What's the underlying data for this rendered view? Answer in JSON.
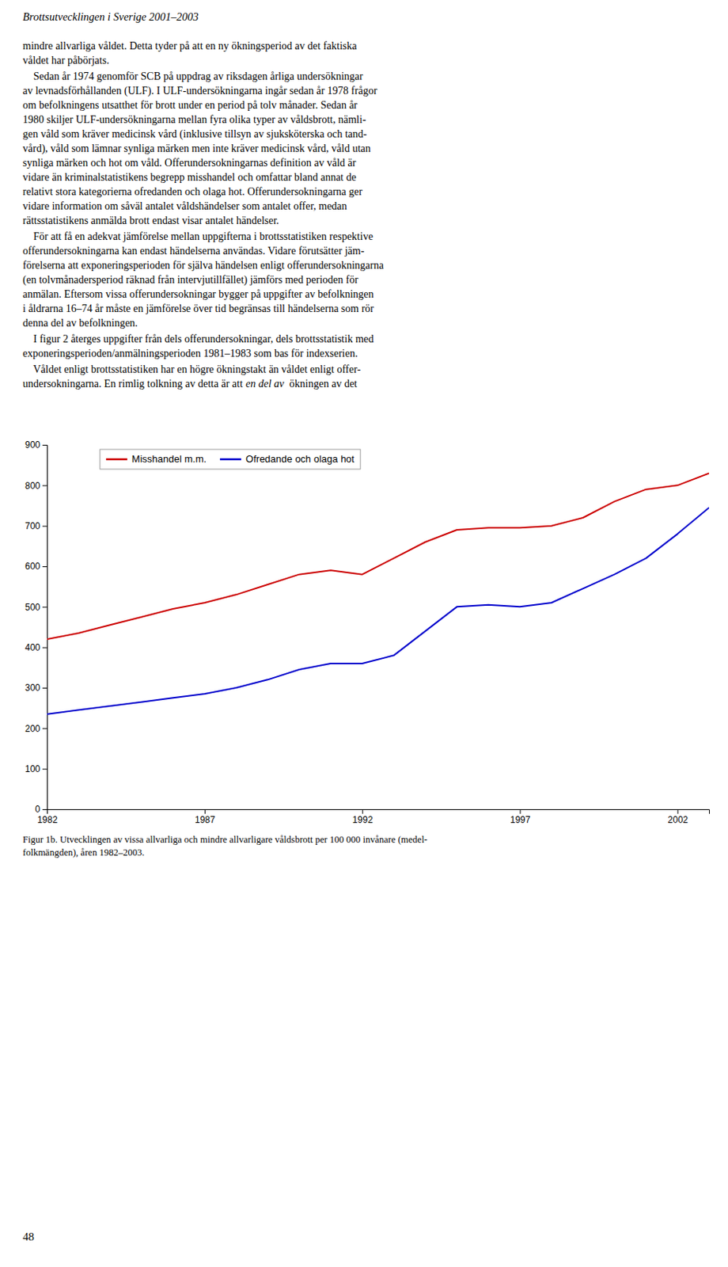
{
  "page_title": "Brottsutvecklingen i Sverige 2001–2003",
  "paragraphs": [
    [
      "mindre allvarliga våldet. Detta tyder på att en ny ökningsperiod av det faktiska",
      "våldet har påbörjats."
    ],
    [
      "    Sedan år 1974 genomför SCB på uppdrag av riksdagen årliga undersökningar",
      "av levnadsförhållanden (ULF). I ULF-undersökningarna ingår sedan år 1978 frågor",
      "om befolkningens utsatthet för brott under en period på tolv månader. Sedan år",
      "1980 skiljer ULF-undersökningarna mellan fyra olika typer av våldsbrott, nämli-",
      "gen våld som kräver medicinsk vård (inklusive tillsyn av sjuksköterska och tand-",
      "vård), våld som lämnar synliga märken men inte kräver medicinsk vård, våld utan",
      "synliga märken och hot om våld. Offerundersokningarnas definition av våld är",
      "vidare än kriminalstatistikens begrepp misshandel och omfattar bland annat de",
      "relativt stora kategorierna ofredanden och olaga hot. Offerundersokningarna ger",
      "vidare information om såväl antalet våldshändelser som antalet offer, medan",
      "rättsstatistikens anmälda brott endast visar antalet händelser."
    ],
    [
      "    För att få en adekvat jämförelse mellan uppgifterna i brottsstatistiken respektive",
      "offerundersokningarna kan endast händelserna användas. Vidare förutsätter jäm-",
      "förelserna att exponeringsperioden för själva händelsen enligt offerundersokningarna",
      "(en tolvmånadersperiod räknad från intervjutillfället) jämförs med perioden för",
      "anmälan. Eftersom vissa offerundersokningar bygger på uppgifter av befolkningen",
      "i åldrarna 16–74 år måste en jämförelse över tid begränsas till händelserna som rör",
      "denna del av befolkningen."
    ],
    [
      "    I figur 2 återges uppgifter från dels offerundersokningar, dels brottsstatistik med",
      "exponeringsperioden/anmälningsperioden 1981–1983 som bas för indexserien."
    ],
    [
      "    Våldet enligt brottsstatistiken har en högre ökningstakt än våldet enligt offer-",
      [
        {
          "text": "undersokningarna. En rimlig tolkning av detta är att",
          "style": "normal"
        },
        {
          "text": "en del av",
          "style": "italic"
        },
        {
          "text": "  ökningen av det",
          "style": "normal"
        }
      ]
    ]
  ],
  "chart_data": {
    "type": "line",
    "x": [
      1982,
      1983,
      1984,
      1985,
      1986,
      1987,
      1988,
      1989,
      1990,
      1991,
      1992,
      1993,
      1994,
      1995,
      1996,
      1997,
      1998,
      1999,
      2000,
      2001,
      2002,
      2003
    ],
    "series": [
      {
        "name": "Misshandel m.m.",
        "color": "#cc0000",
        "values": [
          420,
          435,
          455,
          475,
          495,
          510,
          530,
          555,
          580,
          590,
          580,
          620,
          660,
          690,
          695,
          695,
          700,
          720,
          760,
          790,
          800,
          830
        ]
      },
      {
        "name": "Ofredande och olaga hot",
        "color": "#0000cc",
        "values": [
          235,
          245,
          255,
          265,
          275,
          285,
          300,
          320,
          345,
          360,
          360,
          380,
          440,
          500,
          505,
          500,
          510,
          545,
          580,
          620,
          680,
          745
        ]
      }
    ],
    "xlim": [
      1982,
      2003
    ],
    "xticks": [
      1982,
      1987,
      1992,
      1997,
      2002
    ],
    "ylim": [
      0,
      900
    ],
    "yticks": [
      0,
      100,
      200,
      300,
      400,
      500,
      600,
      700,
      800,
      900
    ],
    "grid": false,
    "legend": "upper left"
  },
  "caption": [
    "Figur 1b. Utvecklingen av vissa allvarliga och mindre allvarligare våldsbrott per 100 000 invånare (medel-",
    "folkmängden), åren 1982–2003."
  ],
  "page_number": "48"
}
